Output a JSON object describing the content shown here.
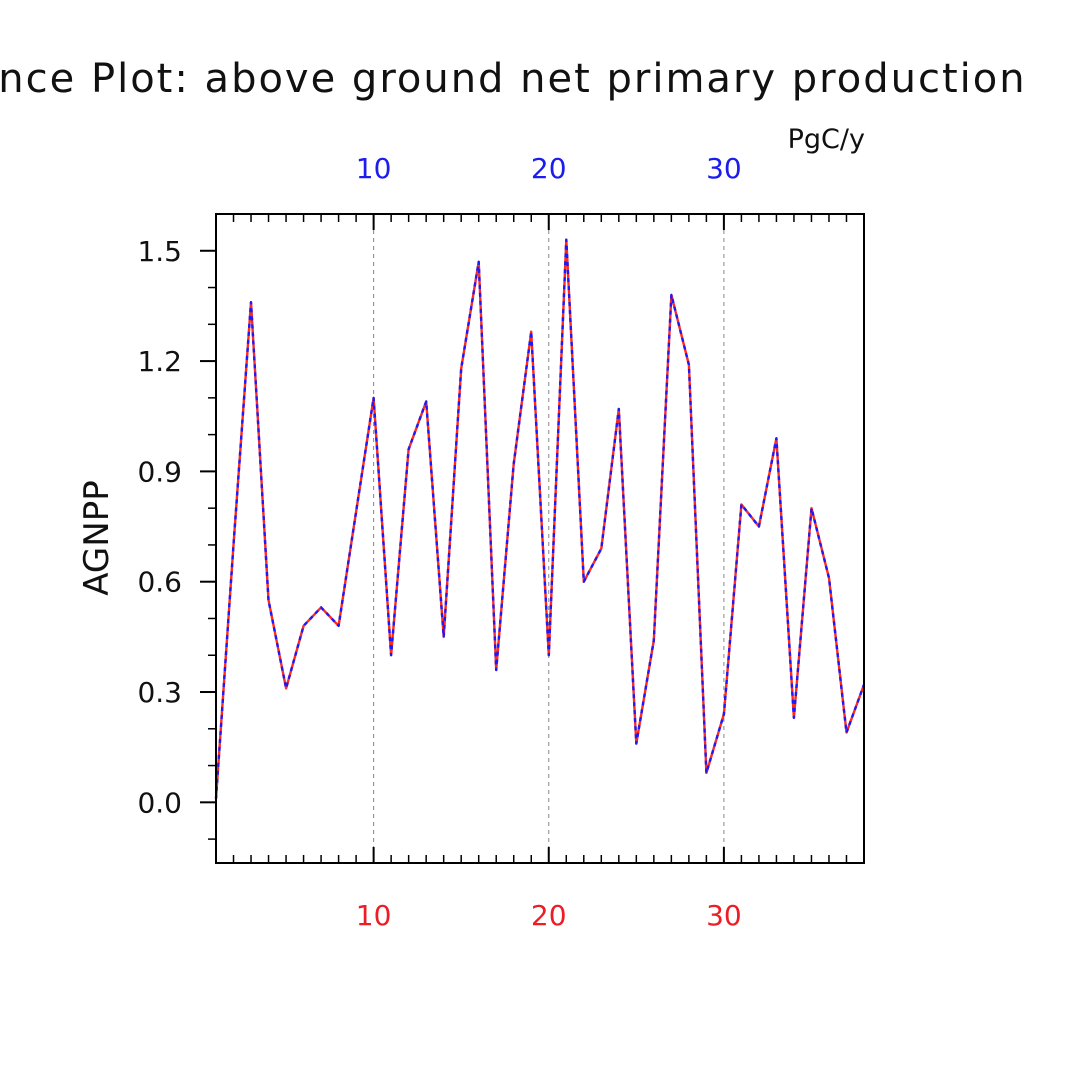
{
  "chart_data": {
    "type": "line",
    "title": "Difference Plot: above ground net primary production",
    "units": "PgC/y",
    "ylabel": "AGNPP",
    "xlabel": "",
    "xlim": [
      1,
      38
    ],
    "ylim": [
      -0.165,
      1.6
    ],
    "x_ticks": [
      10,
      20,
      30
    ],
    "y_ticks": [
      0.0,
      0.3,
      0.6,
      0.9,
      1.2,
      1.5
    ],
    "y_tick_labels": [
      "0.0",
      "0.3",
      "0.6",
      "0.9",
      "1.2",
      "1.5"
    ],
    "x_tick_labels_bottom": [
      "10",
      "20",
      "30"
    ],
    "x_tick_labels_top": [
      "10",
      "20",
      "30"
    ],
    "grid": "vertical dashed at major x ticks",
    "colors": {
      "bottom_axis": "#ee1c24",
      "top_axis": "#1c1cee",
      "series_a": "#ff2a1a",
      "series_b": "#1a1aff",
      "frame": "#000000",
      "grid": "#888888"
    },
    "x": [
      1,
      2,
      3,
      4,
      5,
      6,
      7,
      8,
      9,
      10,
      11,
      12,
      13,
      14,
      15,
      16,
      17,
      18,
      19,
      20,
      21,
      22,
      23,
      24,
      25,
      26,
      27,
      28,
      29,
      30,
      31,
      32,
      33,
      34,
      35,
      36,
      37,
      38
    ],
    "series": [
      {
        "values": [
          0.01,
          0.7,
          1.36,
          0.55,
          0.31,
          0.48,
          0.53,
          0.48,
          0.79,
          1.1,
          0.4,
          0.96,
          1.09,
          0.45,
          1.18,
          1.47,
          0.36,
          0.92,
          1.28,
          0.4,
          1.53,
          0.6,
          0.69,
          1.07,
          0.16,
          0.44,
          1.38,
          1.19,
          0.08,
          0.24,
          0.81,
          0.75,
          0.99,
          0.23,
          0.8,
          0.61,
          0.19,
          0.32
        ]
      },
      {
        "values": [
          0.01,
          0.7,
          1.36,
          0.55,
          0.31,
          0.48,
          0.53,
          0.48,
          0.79,
          1.1,
          0.4,
          0.96,
          1.09,
          0.45,
          1.18,
          1.47,
          0.36,
          0.92,
          1.28,
          0.4,
          1.53,
          0.6,
          0.69,
          1.07,
          0.16,
          0.44,
          1.38,
          1.19,
          0.08,
          0.24,
          0.81,
          0.75,
          0.99,
          0.23,
          0.8,
          0.61,
          0.19,
          0.32
        ]
      }
    ]
  }
}
